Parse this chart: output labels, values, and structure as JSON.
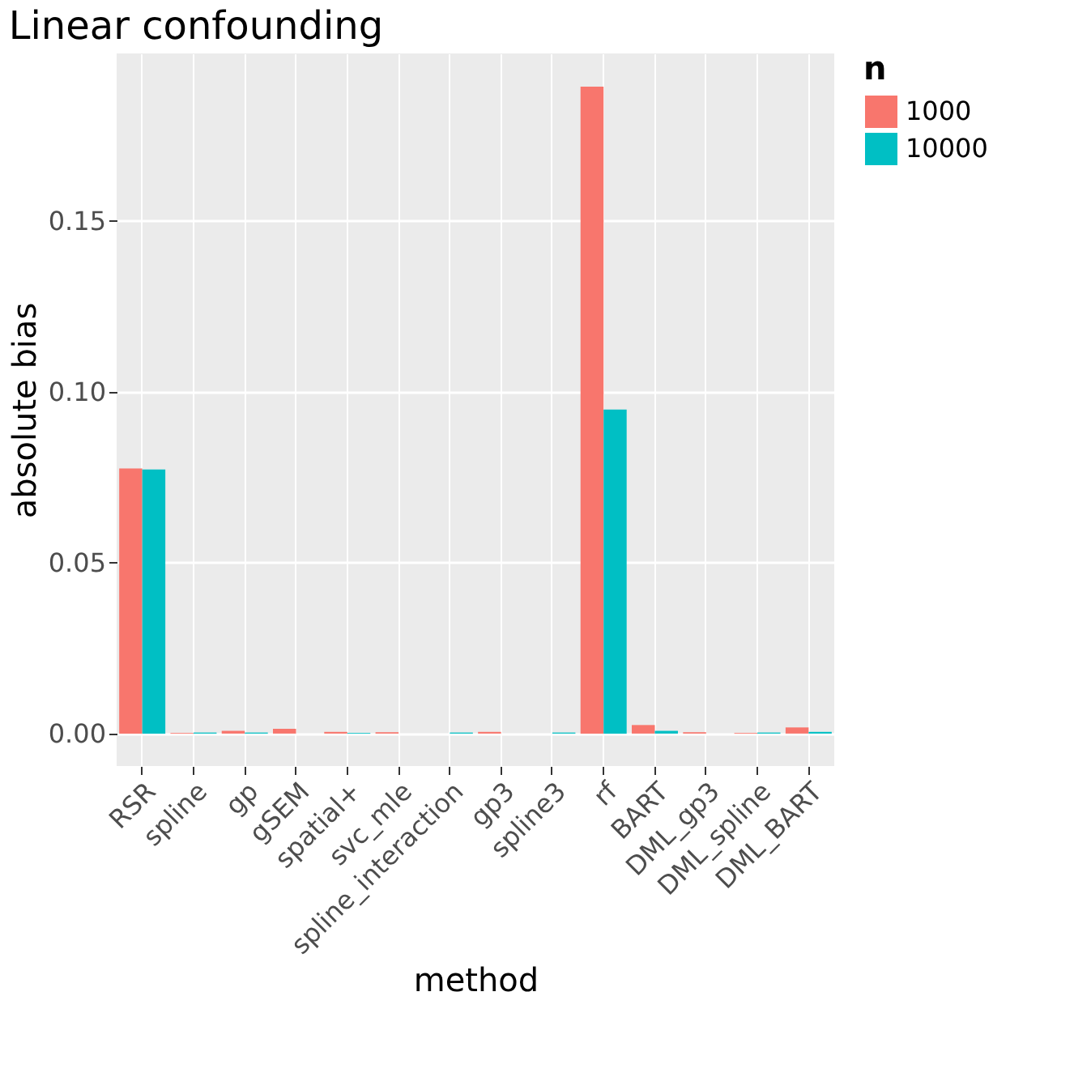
{
  "chart_data": {
    "type": "bar",
    "title": "Linear confounding",
    "xlabel": "method",
    "ylabel": "absolute bias",
    "legend_title": "n",
    "categories": [
      "RSR",
      "spline",
      "gp",
      "gSEM",
      "spatial+",
      "svc_mle",
      "spline_interaction",
      "gp3",
      "spline3",
      "rf",
      "BART",
      "DML_gp3",
      "DML_spline",
      "DML_BART"
    ],
    "series": [
      {
        "name": "1000",
        "color": "#f8766d",
        "values": [
          0.0776,
          0.0002,
          0.0008,
          0.0014,
          0.0005,
          0.0004,
          null,
          0.0005,
          0.0,
          0.1893,
          0.0025,
          0.0004,
          0.0002,
          0.0018
        ]
      },
      {
        "name": "10000",
        "color": "#00bfc4",
        "values": [
          0.0773,
          0.0003,
          0.0003,
          null,
          0.0002,
          null,
          0.0003,
          0.0,
          0.0003,
          0.0948,
          0.0008,
          0.0,
          0.0003,
          0.0005
        ]
      }
    ],
    "ylim": [
      -0.0095,
      0.199
    ],
    "yticks": [
      {
        "value": 0,
        "label": "0.00"
      },
      {
        "value": 0.05,
        "label": "0.05"
      },
      {
        "value": 0.1,
        "label": "0.10"
      },
      {
        "value": 0.15,
        "label": "0.15"
      }
    ],
    "grid": true,
    "legend": "right"
  }
}
